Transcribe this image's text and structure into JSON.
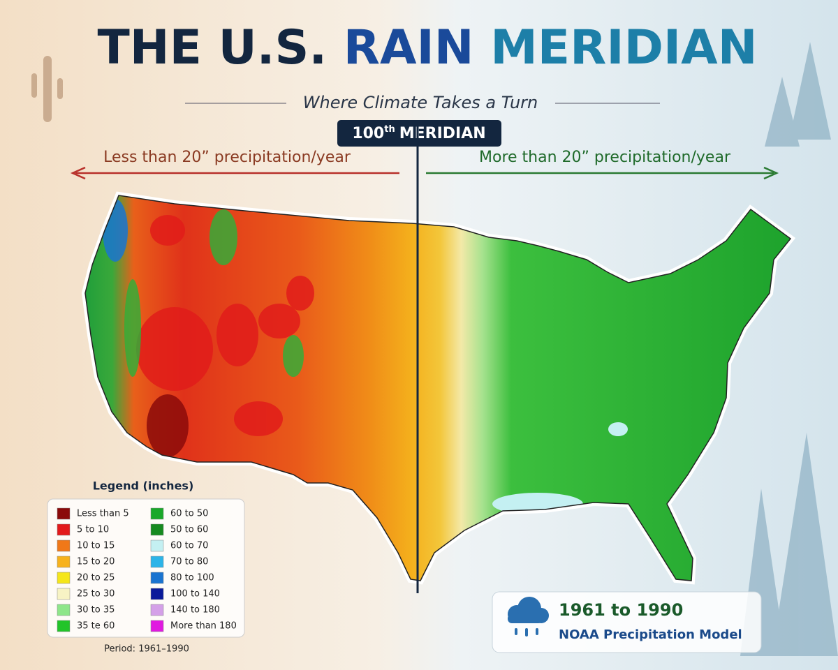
{
  "header": {
    "title_parts": [
      "THE U.S.",
      "RAIN",
      "MERIDIAN"
    ],
    "subtitle": "Where Climate Takes a Turn"
  },
  "meridian": {
    "number": "100",
    "suffix": "th",
    "word": "MERIDIAN"
  },
  "arrows": {
    "left": "Less than 20” precipitation/year",
    "right": "More than 20” precipitation/year"
  },
  "legend": {
    "title": "Legend (inches)",
    "period": "Period: 1961–1990",
    "items": [
      {
        "label": "Less than 5",
        "color": "#8b0a0a"
      },
      {
        "label": "5 to 10",
        "color": "#e31a1c"
      },
      {
        "label": "10 to 15",
        "color": "#f07818"
      },
      {
        "label": "15 to 20",
        "color": "#f7b21c"
      },
      {
        "label": "20 to 25",
        "color": "#f5e61a"
      },
      {
        "label": "25 to 30",
        "color": "#f7f3c4"
      },
      {
        "label": "30 to 35",
        "color": "#8ee68a"
      },
      {
        "label": "35 te 60",
        "color": "#22c42a"
      },
      {
        "label": "60 to 50",
        "color": "#1aa82a"
      },
      {
        "label": "50 to 60",
        "color": "#168a20"
      },
      {
        "label": "60 to 70",
        "color": "#c4f0f2"
      },
      {
        "label": "70 to 80",
        "color": "#2cb4e8"
      },
      {
        "label": "80 to 100",
        "color": "#1a74d0"
      },
      {
        "label": "100 to 140",
        "color": "#0a1a9a"
      },
      {
        "label": "140 to 180",
        "color": "#d4a0e8"
      },
      {
        "label": "More than 180",
        "color": "#e01ae0"
      }
    ]
  },
  "info_box": {
    "years": "1961 to 1990",
    "source": "NOAA Precipitation Model"
  }
}
